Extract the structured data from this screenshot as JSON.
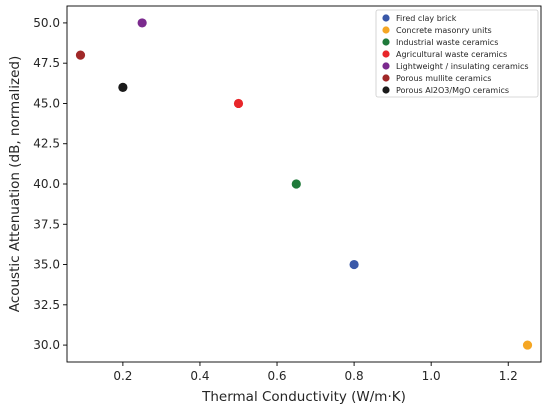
{
  "chart_data": {
    "type": "scatter",
    "title": "",
    "xlabel": "Thermal Conductivity (W/m·K)",
    "ylabel": "Acoustic Attenuation (dB, normalized)",
    "xlim": [
      0.055,
      1.285
    ],
    "ylim": [
      28.95,
      51.05
    ],
    "xticks": [
      0.2,
      0.4,
      0.6,
      0.8,
      1.0,
      1.2
    ],
    "xtick_labels": [
      "0.2",
      "0.4",
      "0.6",
      "0.8",
      "1.0",
      "1.2"
    ],
    "yticks": [
      30.0,
      32.5,
      35.0,
      37.5,
      40.0,
      42.5,
      45.0,
      47.5,
      50.0
    ],
    "ytick_labels": [
      "30.0",
      "32.5",
      "35.0",
      "37.5",
      "40.0",
      "42.5",
      "45.0",
      "47.5",
      "50.0"
    ],
    "grid": false,
    "legend_position": "top-right",
    "series": [
      {
        "name": "Fired clay brick",
        "color": "#3a58a8",
        "x": [
          0.8
        ],
        "y": [
          35
        ]
      },
      {
        "name": "Concrete masonry units",
        "color": "#f5a623",
        "x": [
          1.25
        ],
        "y": [
          30
        ]
      },
      {
        "name": "Industrial waste ceramics",
        "color": "#1f7a3a",
        "x": [
          0.65
        ],
        "y": [
          40
        ]
      },
      {
        "name": "Agricultural waste ceramics",
        "color": "#e8262a",
        "x": [
          0.5
        ],
        "y": [
          45
        ]
      },
      {
        "name": "Lightweight / insulating ceramics",
        "color": "#7b2a8e",
        "x": [
          0.25
        ],
        "y": [
          50
        ]
      },
      {
        "name": "Porous mullite ceramics",
        "color": "#a02828",
        "x": [
          0.09
        ],
        "y": [
          48
        ]
      },
      {
        "name": "Porous Al2O3/MgO ceramics",
        "color": "#1a1a1a",
        "x": [
          0.2
        ],
        "y": [
          46
        ]
      }
    ]
  }
}
